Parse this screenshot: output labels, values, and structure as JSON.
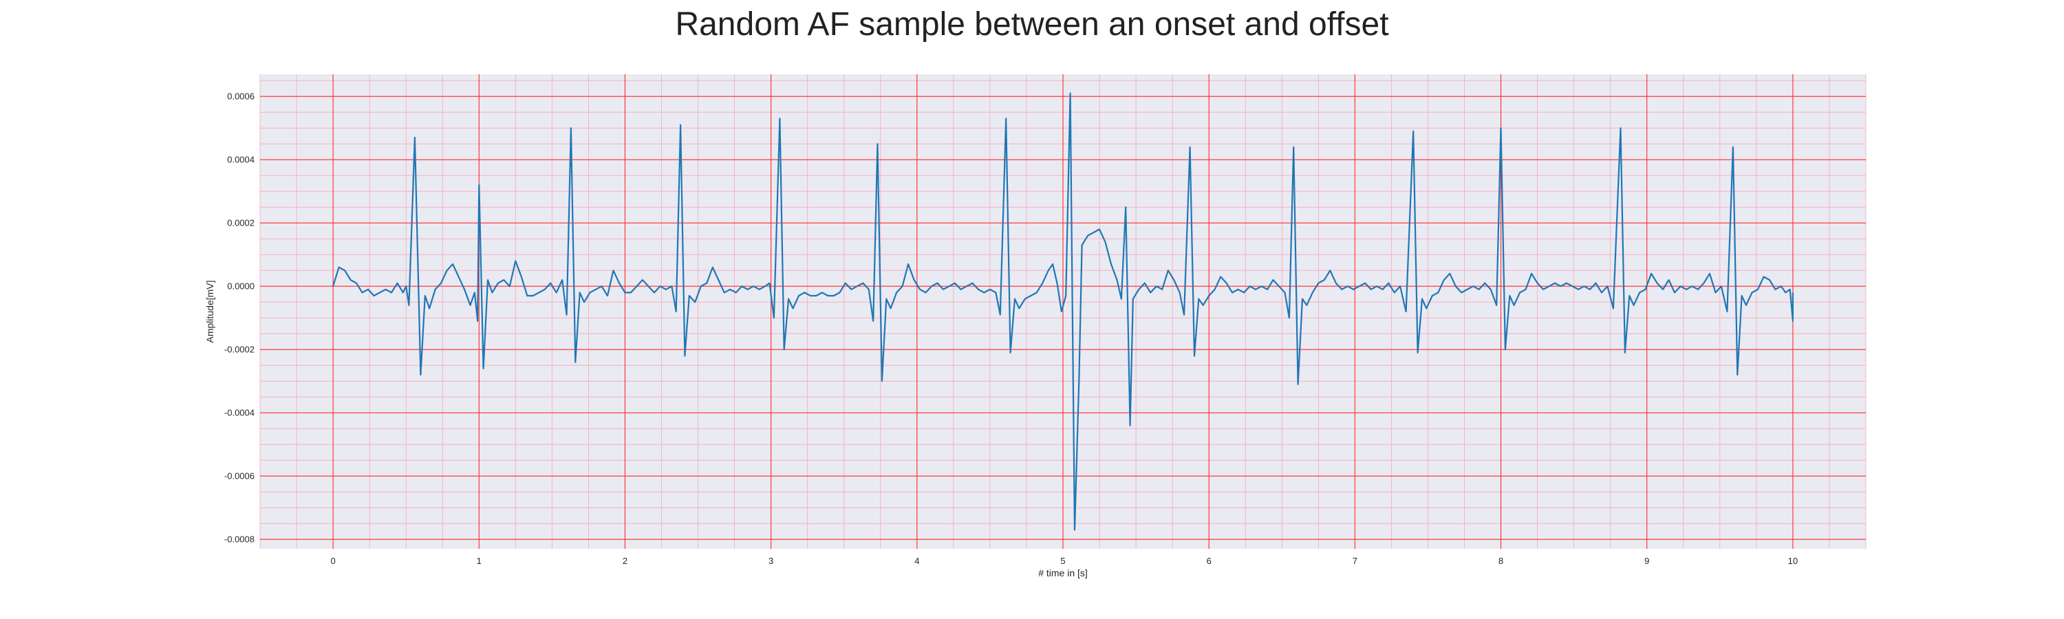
{
  "chart_data": {
    "type": "line",
    "title": "Random AF sample between an onset and offset",
    "xlabel": "# time in [s]",
    "ylabel": "Amplitude[mV]",
    "xlim": [
      -0.5,
      10.5
    ],
    "ylim": [
      -0.00083,
      0.00067
    ],
    "xticks": [
      0,
      1,
      2,
      3,
      4,
      5,
      6,
      7,
      8,
      9,
      10
    ],
    "xtick_labels": [
      "0",
      "1",
      "2",
      "3",
      "4",
      "5",
      "6",
      "7",
      "8",
      "9",
      "10"
    ],
    "yticks": [
      -0.0008,
      -0.0006,
      -0.0004,
      -0.0002,
      0.0,
      0.0002,
      0.0004,
      0.0006
    ],
    "ytick_labels": [
      "-0.0008",
      "-0.0006",
      "-0.0004",
      "-0.0002",
      "0.0000",
      "0.0002",
      "0.0004",
      "0.0006"
    ],
    "grid": true,
    "minor_grid": true,
    "colors": {
      "line": "#1f77b4",
      "plot_background": "#eaeaf2",
      "major_grid": "#ff2a2a",
      "minor_grid": "#f4a9b8"
    },
    "series": [
      {
        "points": [
          [
            0.0,
            0.0
          ],
          [
            0.04,
            6e-05
          ],
          [
            0.08,
            5e-05
          ],
          [
            0.12,
            2e-05
          ],
          [
            0.16,
            1e-05
          ],
          [
            0.2,
            -2e-05
          ],
          [
            0.24,
            -1e-05
          ],
          [
            0.28,
            -3e-05
          ],
          [
            0.32,
            -2e-05
          ],
          [
            0.36,
            -1e-05
          ],
          [
            0.4,
            -2e-05
          ],
          [
            0.44,
            1e-05
          ],
          [
            0.48,
            -2e-05
          ],
          [
            0.5,
            0.0
          ],
          [
            0.52,
            -6e-05
          ],
          [
            0.56,
            0.00047
          ],
          [
            0.6,
            -0.00028
          ],
          [
            0.63,
            -3e-05
          ],
          [
            0.66,
            -7e-05
          ],
          [
            0.7,
            -1e-05
          ],
          [
            0.74,
            1e-05
          ],
          [
            0.78,
            5e-05
          ],
          [
            0.82,
            7e-05
          ],
          [
            0.86,
            3e-05
          ],
          [
            0.9,
            -1e-05
          ],
          [
            0.94,
            -6e-05
          ],
          [
            0.97,
            -2e-05
          ],
          [
            0.99,
            -0.00011
          ],
          [
            1.0,
            0.00032
          ],
          [
            1.03,
            -0.00026
          ],
          [
            1.06,
            2e-05
          ],
          [
            1.09,
            -2e-05
          ],
          [
            1.13,
            1e-05
          ],
          [
            1.17,
            2e-05
          ],
          [
            1.21,
            0.0
          ],
          [
            1.25,
            8e-05
          ],
          [
            1.29,
            3e-05
          ],
          [
            1.33,
            -3e-05
          ],
          [
            1.37,
            -3e-05
          ],
          [
            1.41,
            -2e-05
          ],
          [
            1.45,
            -1e-05
          ],
          [
            1.49,
            1e-05
          ],
          [
            1.53,
            -2e-05
          ],
          [
            1.57,
            2e-05
          ],
          [
            1.6,
            -9e-05
          ],
          [
            1.63,
            0.0005
          ],
          [
            1.66,
            -0.00024
          ],
          [
            1.69,
            -2e-05
          ],
          [
            1.72,
            -5e-05
          ],
          [
            1.76,
            -2e-05
          ],
          [
            1.8,
            -1e-05
          ],
          [
            1.84,
            0.0
          ],
          [
            1.88,
            -3e-05
          ],
          [
            1.92,
            5e-05
          ],
          [
            1.96,
            1e-05
          ],
          [
            2.0,
            -2e-05
          ],
          [
            2.04,
            -2e-05
          ],
          [
            2.08,
            0.0
          ],
          [
            2.12,
            2e-05
          ],
          [
            2.16,
            0.0
          ],
          [
            2.2,
            -2e-05
          ],
          [
            2.24,
            0.0
          ],
          [
            2.28,
            -1e-05
          ],
          [
            2.32,
            0.0
          ],
          [
            2.35,
            -8e-05
          ],
          [
            2.38,
            0.00051
          ],
          [
            2.41,
            -0.00022
          ],
          [
            2.44,
            -3e-05
          ],
          [
            2.48,
            -5e-05
          ],
          [
            2.52,
            0.0
          ],
          [
            2.56,
            1e-05
          ],
          [
            2.6,
            6e-05
          ],
          [
            2.64,
            2e-05
          ],
          [
            2.68,
            -2e-05
          ],
          [
            2.72,
            -1e-05
          ],
          [
            2.76,
            -2e-05
          ],
          [
            2.8,
            0.0
          ],
          [
            2.84,
            -1e-05
          ],
          [
            2.88,
            0.0
          ],
          [
            2.92,
            -1e-05
          ],
          [
            2.96,
            0.0
          ],
          [
            2.99,
            1e-05
          ],
          [
            3.02,
            -0.0001
          ],
          [
            3.06,
            0.00053
          ],
          [
            3.09,
            -0.0002
          ],
          [
            3.12,
            -4e-05
          ],
          [
            3.15,
            -7e-05
          ],
          [
            3.19,
            -3e-05
          ],
          [
            3.23,
            -2e-05
          ],
          [
            3.27,
            -3e-05
          ],
          [
            3.31,
            -3e-05
          ],
          [
            3.35,
            -2e-05
          ],
          [
            3.39,
            -3e-05
          ],
          [
            3.43,
            -3e-05
          ],
          [
            3.47,
            -2e-05
          ],
          [
            3.51,
            1e-05
          ],
          [
            3.55,
            -1e-05
          ],
          [
            3.59,
            0.0
          ],
          [
            3.63,
            1e-05
          ],
          [
            3.67,
            -1e-05
          ],
          [
            3.7,
            -0.00011
          ],
          [
            3.73,
            0.00045
          ],
          [
            3.76,
            -0.0003
          ],
          [
            3.79,
            -4e-05
          ],
          [
            3.82,
            -7e-05
          ],
          [
            3.86,
            -2e-05
          ],
          [
            3.9,
            0.0
          ],
          [
            3.94,
            7e-05
          ],
          [
            3.98,
            2e-05
          ],
          [
            4.02,
            -1e-05
          ],
          [
            4.06,
            -2e-05
          ],
          [
            4.1,
            0.0
          ],
          [
            4.14,
            1e-05
          ],
          [
            4.18,
            -1e-05
          ],
          [
            4.22,
            0.0
          ],
          [
            4.26,
            1e-05
          ],
          [
            4.3,
            -1e-05
          ],
          [
            4.34,
            0.0
          ],
          [
            4.38,
            1e-05
          ],
          [
            4.42,
            -1e-05
          ],
          [
            4.46,
            -2e-05
          ],
          [
            4.5,
            -1e-05
          ],
          [
            4.54,
            -2e-05
          ],
          [
            4.57,
            -9e-05
          ],
          [
            4.61,
            0.00053
          ],
          [
            4.64,
            -0.00021
          ],
          [
            4.67,
            -4e-05
          ],
          [
            4.7,
            -7e-05
          ],
          [
            4.74,
            -4e-05
          ],
          [
            4.78,
            -3e-05
          ],
          [
            4.82,
            -2e-05
          ],
          [
            4.86,
            1e-05
          ],
          [
            4.9,
            5e-05
          ],
          [
            4.93,
            7e-05
          ],
          [
            4.96,
            1e-05
          ],
          [
            4.99,
            -8e-05
          ],
          [
            5.02,
            -3e-05
          ],
          [
            5.05,
            0.00061
          ],
          [
            5.08,
            -0.00077
          ],
          [
            5.11,
            -0.0003
          ],
          [
            5.13,
            0.00013
          ],
          [
            5.17,
            0.00016
          ],
          [
            5.21,
            0.00017
          ],
          [
            5.25,
            0.00018
          ],
          [
            5.29,
            0.00014
          ],
          [
            5.33,
            7e-05
          ],
          [
            5.37,
            2e-05
          ],
          [
            5.4,
            -4e-05
          ],
          [
            5.43,
            0.00025
          ],
          [
            5.46,
            -0.00044
          ],
          [
            5.48,
            -4e-05
          ],
          [
            5.52,
            -1e-05
          ],
          [
            5.56,
            1e-05
          ],
          [
            5.6,
            -2e-05
          ],
          [
            5.64,
            0.0
          ],
          [
            5.68,
            -1e-05
          ],
          [
            5.72,
            5e-05
          ],
          [
            5.76,
            2e-05
          ],
          [
            5.8,
            -2e-05
          ],
          [
            5.83,
            -9e-05
          ],
          [
            5.87,
            0.00044
          ],
          [
            5.9,
            -0.00022
          ],
          [
            5.93,
            -4e-05
          ],
          [
            5.96,
            -6e-05
          ],
          [
            6.0,
            -3e-05
          ],
          [
            6.04,
            -1e-05
          ],
          [
            6.08,
            3e-05
          ],
          [
            6.12,
            1e-05
          ],
          [
            6.16,
            -2e-05
          ],
          [
            6.2,
            -1e-05
          ],
          [
            6.24,
            -2e-05
          ],
          [
            6.28,
            0.0
          ],
          [
            6.32,
            -1e-05
          ],
          [
            6.36,
            0.0
          ],
          [
            6.4,
            -1e-05
          ],
          [
            6.44,
            2e-05
          ],
          [
            6.48,
            0.0
          ],
          [
            6.52,
            -2e-05
          ],
          [
            6.55,
            -0.0001
          ],
          [
            6.58,
            0.00044
          ],
          [
            6.61,
            -0.00031
          ],
          [
            6.64,
            -4e-05
          ],
          [
            6.67,
            -6e-05
          ],
          [
            6.71,
            -2e-05
          ],
          [
            6.75,
            1e-05
          ],
          [
            6.79,
            2e-05
          ],
          [
            6.83,
            5e-05
          ],
          [
            6.87,
            1e-05
          ],
          [
            6.91,
            -1e-05
          ],
          [
            6.95,
            0.0
          ],
          [
            6.99,
            -1e-05
          ],
          [
            7.03,
            0.0
          ],
          [
            7.07,
            1e-05
          ],
          [
            7.11,
            -1e-05
          ],
          [
            7.15,
            0.0
          ],
          [
            7.19,
            -1e-05
          ],
          [
            7.23,
            1e-05
          ],
          [
            7.27,
            -2e-05
          ],
          [
            7.31,
            0.0
          ],
          [
            7.35,
            -8e-05
          ],
          [
            7.4,
            0.00049
          ],
          [
            7.43,
            -0.00021
          ],
          [
            7.46,
            -4e-05
          ],
          [
            7.49,
            -7e-05
          ],
          [
            7.53,
            -3e-05
          ],
          [
            7.57,
            -2e-05
          ],
          [
            7.61,
            2e-05
          ],
          [
            7.65,
            4e-05
          ],
          [
            7.69,
            0.0
          ],
          [
            7.73,
            -2e-05
          ],
          [
            7.77,
            -1e-05
          ],
          [
            7.81,
            0.0
          ],
          [
            7.85,
            -1e-05
          ],
          [
            7.89,
            1e-05
          ],
          [
            7.93,
            -1e-05
          ],
          [
            7.97,
            -6e-05
          ],
          [
            8.0,
            0.0005
          ],
          [
            8.03,
            -0.0002
          ],
          [
            8.06,
            -3e-05
          ],
          [
            8.09,
            -6e-05
          ],
          [
            8.13,
            -2e-05
          ],
          [
            8.17,
            -1e-05
          ],
          [
            8.21,
            4e-05
          ],
          [
            8.25,
            1e-05
          ],
          [
            8.29,
            -1e-05
          ],
          [
            8.33,
            0.0
          ],
          [
            8.37,
            1e-05
          ],
          [
            8.41,
            0.0
          ],
          [
            8.45,
            1e-05
          ],
          [
            8.49,
            0.0
          ],
          [
            8.53,
            -1e-05
          ],
          [
            8.57,
            0.0
          ],
          [
            8.61,
            -1e-05
          ],
          [
            8.65,
            1e-05
          ],
          [
            8.69,
            -2e-05
          ],
          [
            8.73,
            0.0
          ],
          [
            8.77,
            -7e-05
          ],
          [
            8.82,
            0.0005
          ],
          [
            8.85,
            -0.00021
          ],
          [
            8.88,
            -3e-05
          ],
          [
            8.91,
            -6e-05
          ],
          [
            8.95,
            -2e-05
          ],
          [
            8.99,
            -1e-05
          ],
          [
            9.03,
            4e-05
          ],
          [
            9.07,
            1e-05
          ],
          [
            9.11,
            -1e-05
          ],
          [
            9.15,
            2e-05
          ],
          [
            9.19,
            -2e-05
          ],
          [
            9.23,
            0.0
          ],
          [
            9.27,
            -1e-05
          ],
          [
            9.31,
            0.0
          ],
          [
            9.35,
            -1e-05
          ],
          [
            9.39,
            1e-05
          ],
          [
            9.43,
            4e-05
          ],
          [
            9.47,
            -2e-05
          ],
          [
            9.51,
            0.0
          ],
          [
            9.55,
            -8e-05
          ],
          [
            9.59,
            0.00044
          ],
          [
            9.62,
            -0.00028
          ],
          [
            9.65,
            -3e-05
          ],
          [
            9.68,
            -6e-05
          ],
          [
            9.72,
            -2e-05
          ],
          [
            9.76,
            -1e-05
          ],
          [
            9.8,
            3e-05
          ],
          [
            9.84,
            2e-05
          ],
          [
            9.88,
            -1e-05
          ],
          [
            9.92,
            0.0
          ],
          [
            9.95,
            -2e-05
          ],
          [
            9.98,
            -1e-05
          ],
          [
            10.0,
            -0.00011
          ],
          [
            10.0,
            -2e-05
          ]
        ]
      }
    ]
  }
}
